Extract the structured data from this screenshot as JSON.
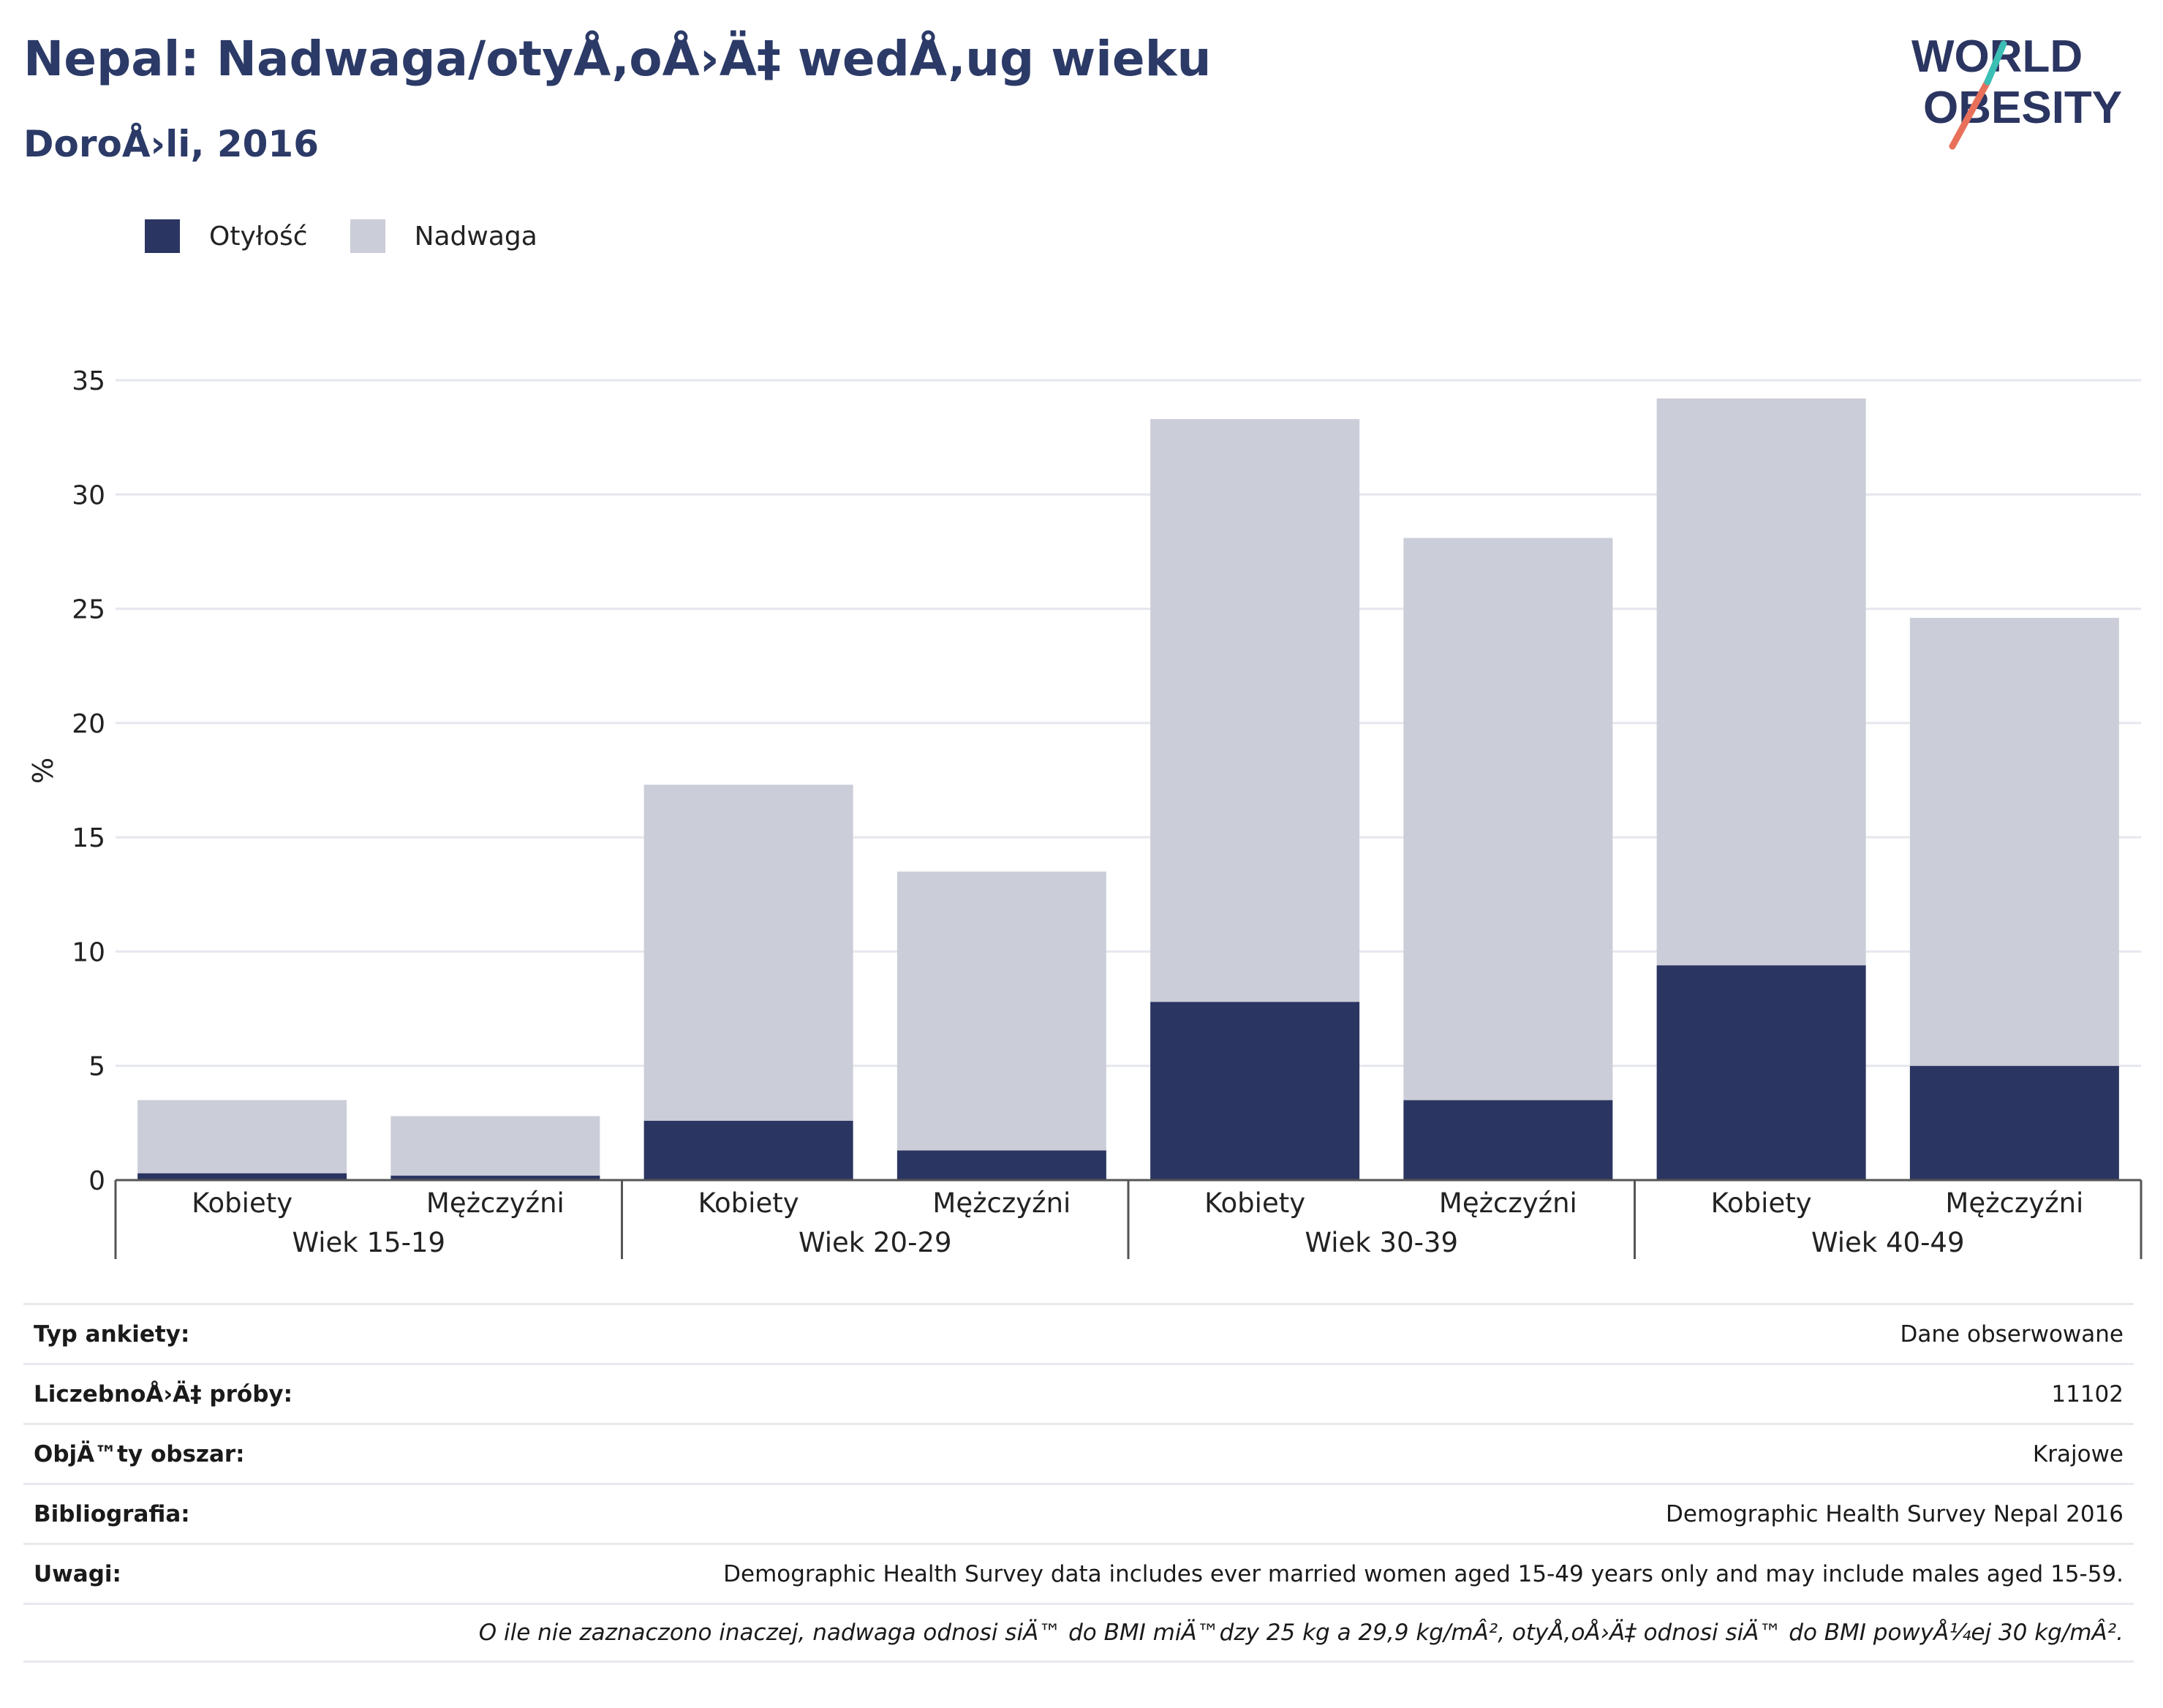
{
  "header": {
    "title": "Nepal: Nadwaga/otyÅ‚oÅ›Ä‡ wedÅ‚ug wieku",
    "subtitle": "DoroÅ›li, 2016",
    "logo_line1": "WORLD",
    "logo_line2": "OBESITY"
  },
  "legend": {
    "items": [
      {
        "label": "Otyłość",
        "color": "#2b3561"
      },
      {
        "label": "Nadwaga",
        "color": "#cbcdd8"
      }
    ]
  },
  "chart_data": {
    "type": "bar",
    "stacked": true,
    "ylabel": "%",
    "ylim": [
      0,
      35
    ],
    "yticks": [
      0,
      5,
      10,
      15,
      20,
      25,
      30,
      35
    ],
    "grid": true,
    "legend_position": "top-left",
    "groups": [
      "Wiek 15-19",
      "Wiek 20-29",
      "Wiek 30-39",
      "Wiek 40-49"
    ],
    "categories": [
      "Kobiety",
      "Mężczyźni",
      "Kobiety",
      "Mężczyźni",
      "Kobiety",
      "Mężczyźni",
      "Kobiety",
      "Mężczyźni"
    ],
    "series": [
      {
        "name": "Otyłość",
        "color": "#2b3561",
        "values": [
          0.3,
          0.2,
          2.6,
          1.3,
          7.8,
          3.5,
          9.4,
          5.0
        ]
      },
      {
        "name": "Nadwaga",
        "color": "#cbcdd8",
        "values": [
          3.2,
          2.6,
          14.7,
          12.2,
          25.5,
          24.6,
          24.8,
          19.6
        ]
      }
    ]
  },
  "info": {
    "rows": [
      {
        "key": "Typ ankiety:",
        "value": "Dane obserwowane"
      },
      {
        "key": "LiczebnoÅ›Ä‡ próby:",
        "value": "11102"
      },
      {
        "key": "ObjÄ™ty obszar:",
        "value": "Krajowe"
      },
      {
        "key": "Bibliografia:",
        "value": "Demographic Health Survey Nepal 2016"
      },
      {
        "key": "Uwagi:",
        "value": "Demographic Health Survey data includes ever married women aged 15-49 years only and may include males aged 15-59."
      }
    ],
    "note": "O ile nie zaznaczono inaczej, nadwaga odnosi siÄ™ do BMI miÄ™dzy 25 kg a 29,9 kg/mÂ², otyÅ‚oÅ›Ä‡ odnosi siÄ™ do BMI powyÅ¼ej 30 kg/mÂ²."
  }
}
